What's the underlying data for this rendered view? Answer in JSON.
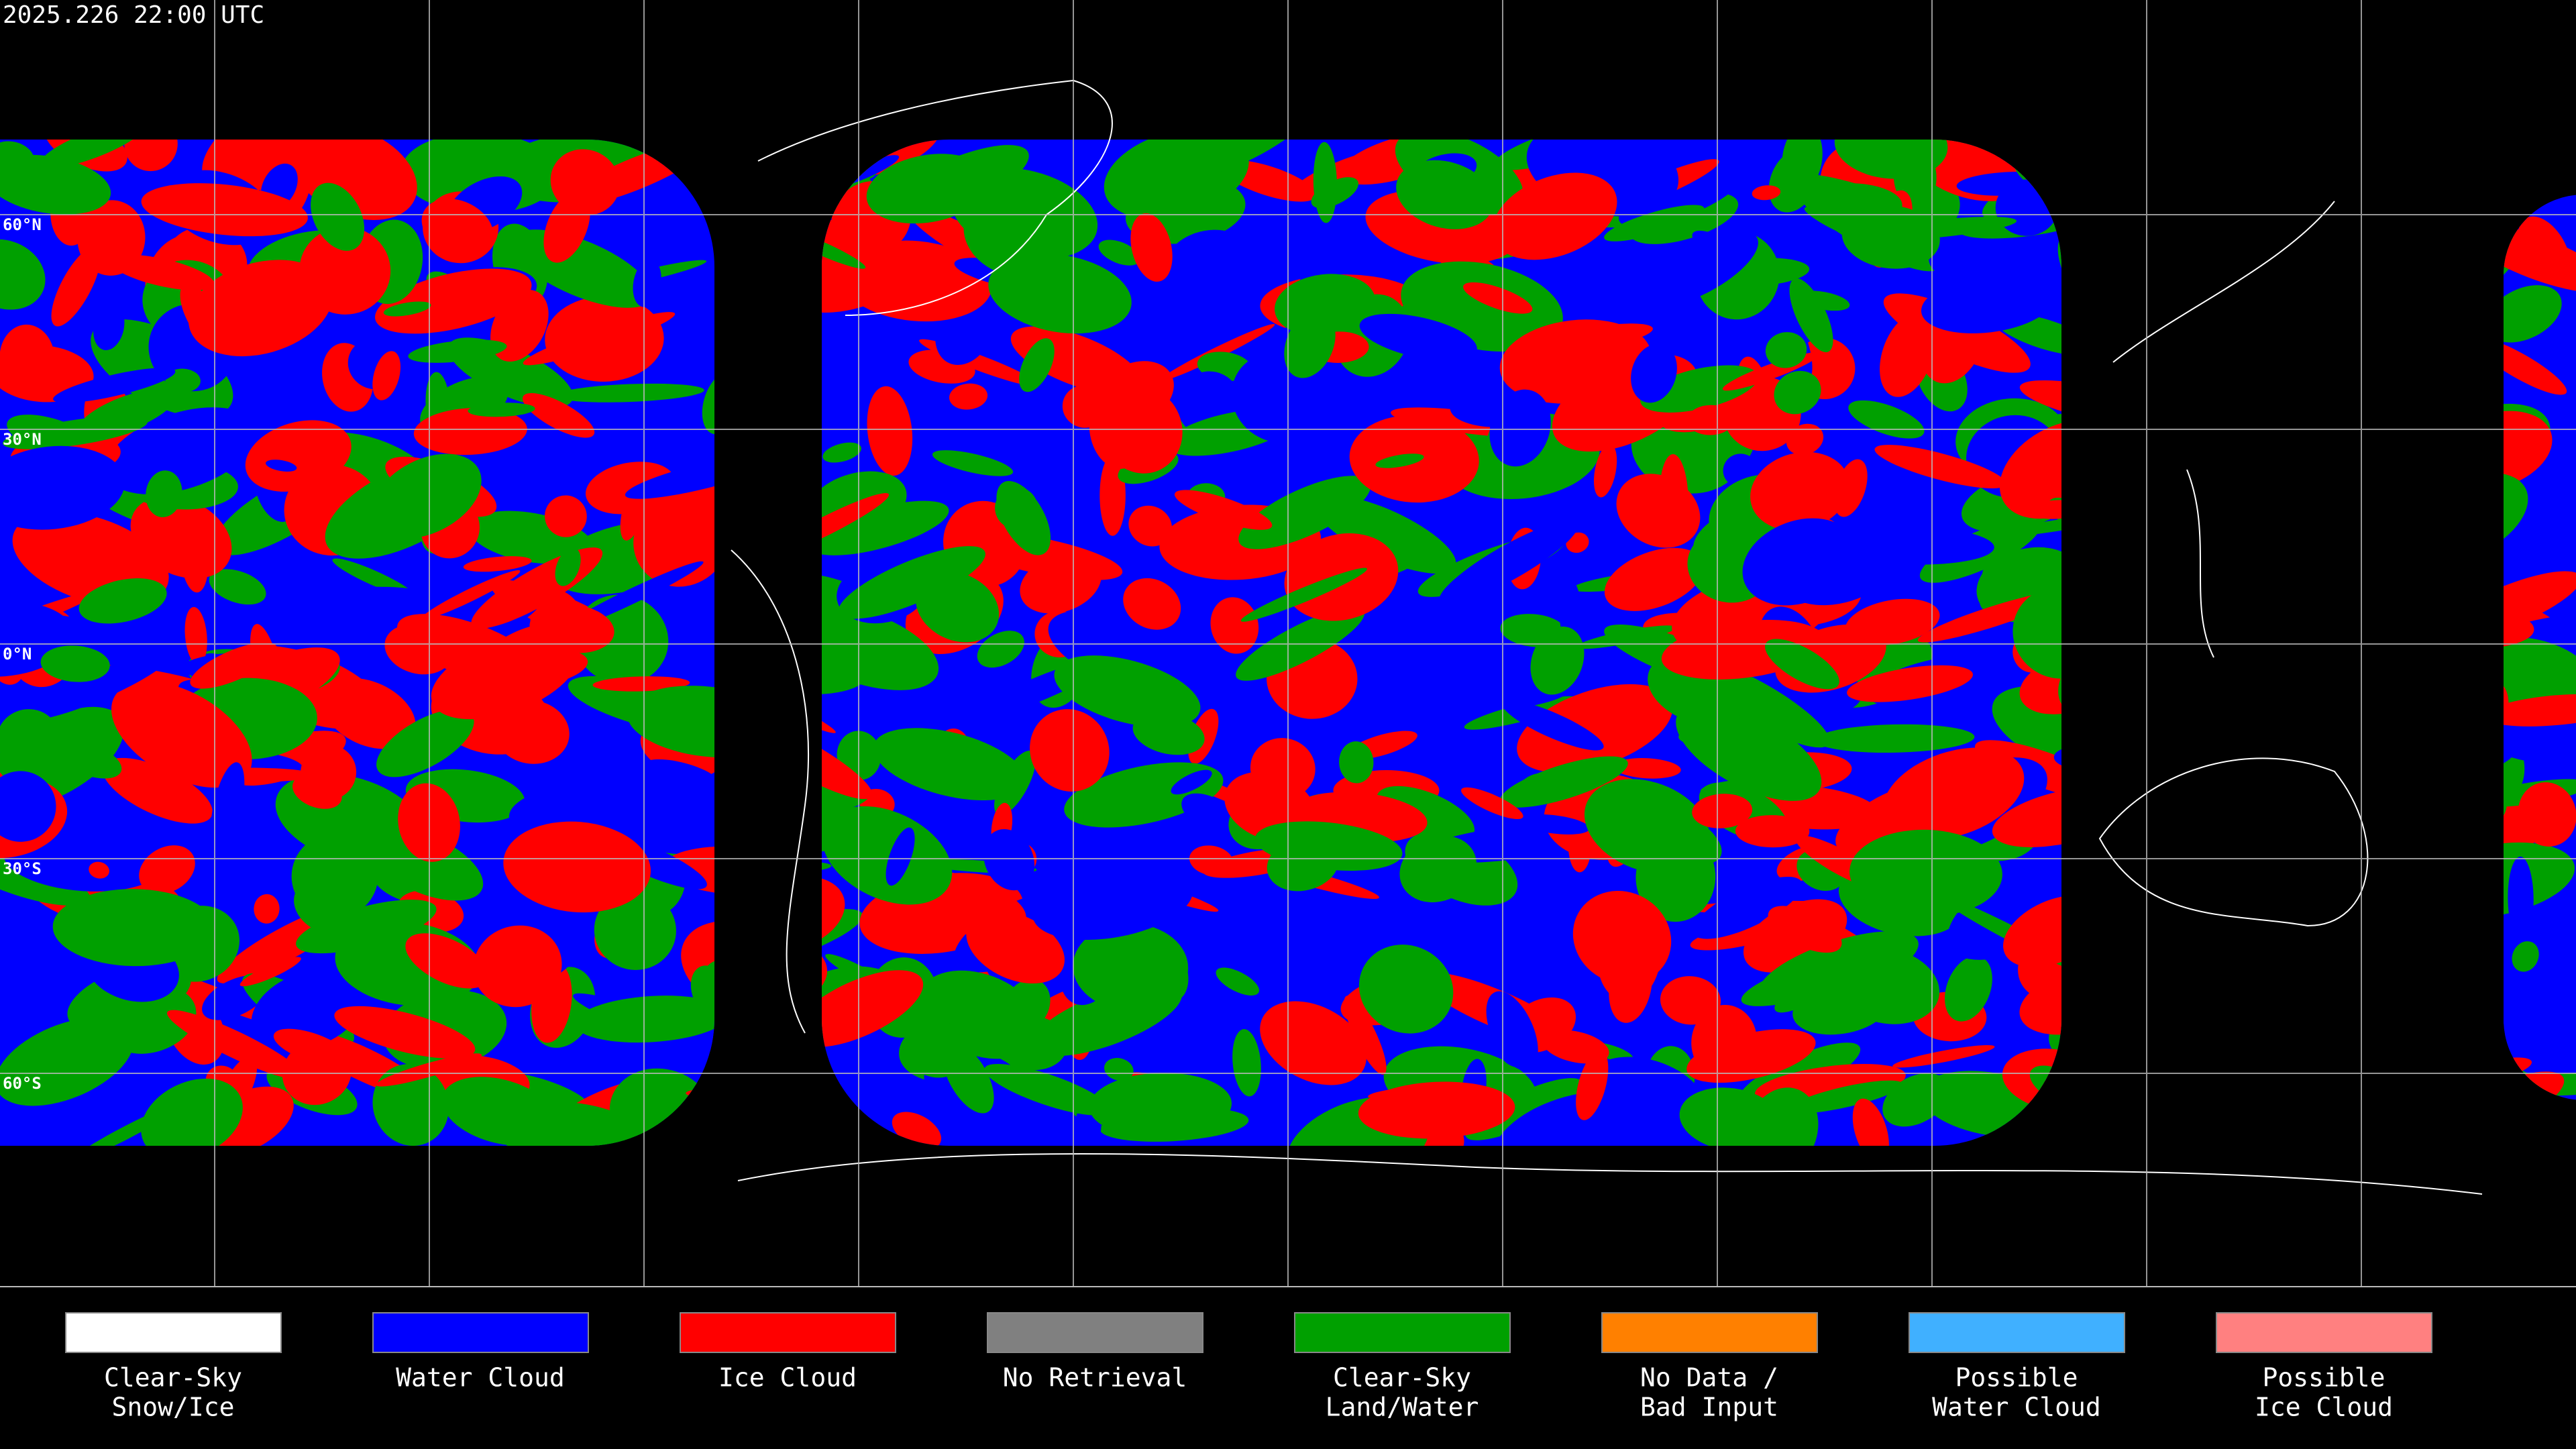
{
  "header": {
    "timestamp": "2025.226 22:00 UTC"
  },
  "map": {
    "latitude_labels": [
      "60°N",
      "30°N",
      "0°N",
      "30°S",
      "60°S"
    ]
  },
  "legend": {
    "items": [
      {
        "lines": [
          "Clear-Sky",
          "Snow/Ice"
        ],
        "color": "#ffffff"
      },
      {
        "lines": [
          "Water Cloud"
        ],
        "color": "#0000ff"
      },
      {
        "lines": [
          "Ice Cloud"
        ],
        "color": "#ff0000"
      },
      {
        "lines": [
          "No Retrieval"
        ],
        "color": "#808080"
      },
      {
        "lines": [
          "Clear-Sky",
          "Land/Water"
        ],
        "color": "#00a000"
      },
      {
        "lines": [
          "No Data /",
          "Bad Input"
        ],
        "color": "#ff8000"
      },
      {
        "lines": [
          "Possible",
          "Water Cloud"
        ],
        "color": "#40b0ff"
      },
      {
        "lines": [
          "Possible",
          "Ice Cloud"
        ],
        "color": "#ff8080"
      }
    ]
  }
}
